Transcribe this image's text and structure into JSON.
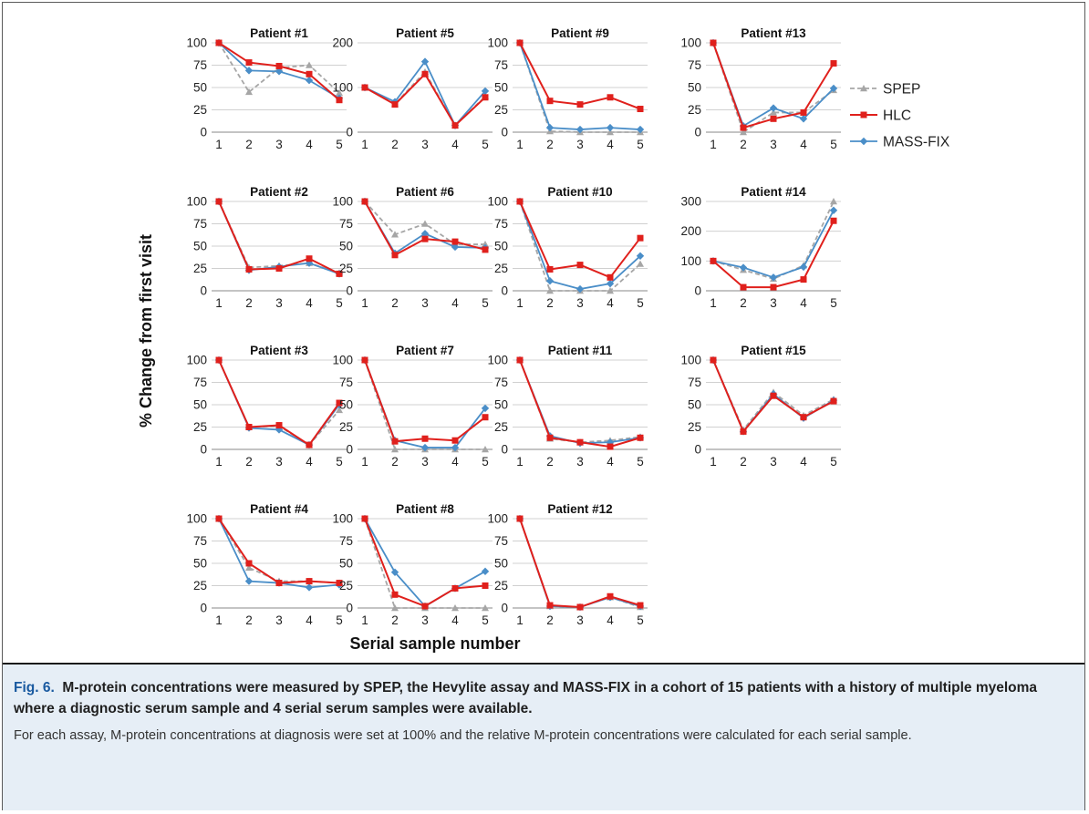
{
  "figure": {
    "y_axis_label": "% Change from first visit",
    "x_axis_label": "Serial sample number"
  },
  "legend": [
    {
      "name": "SPEP",
      "color": "#a6a6a6",
      "marker": "triangle",
      "dashed": true
    },
    {
      "name": "HLC",
      "color": "#e0201c",
      "marker": "square",
      "dashed": false
    },
    {
      "name": "MASS-FIX",
      "color": "#4a8ec8",
      "marker": "diamond",
      "dashed": false
    }
  ],
  "caption": {
    "label": "Fig. 6.",
    "title": "M-protein concentrations were measured by SPEP, the Hevylite assay and MASS-FIX in a cohort of 15 patients with a history of multiple myeloma where a diagnostic serum sample and 4 serial serum samples were available.",
    "body": "For each assay, M-protein concentrations at diagnosis were set at 100% and the relative M-protein concentrations were calculated for each serial sample."
  },
  "chart_data": [
    {
      "type": "line",
      "title": "Patient #1",
      "x": [
        1,
        2,
        3,
        4,
        5
      ],
      "ylim": [
        0,
        100
      ],
      "yticks": [
        0,
        25,
        50,
        75,
        100
      ],
      "series": [
        {
          "name": "SPEP",
          "values": [
            100,
            45,
            72,
            75,
            44
          ]
        },
        {
          "name": "HLC",
          "values": [
            100,
            78,
            74,
            65,
            36
          ]
        },
        {
          "name": "MASS-FIX",
          "values": [
            100,
            69,
            68,
            58,
            38
          ]
        }
      ]
    },
    {
      "type": "line",
      "title": "Patient #2",
      "x": [
        1,
        2,
        3,
        4,
        5
      ],
      "ylim": [
        0,
        100
      ],
      "yticks": [
        0,
        25,
        50,
        75,
        100
      ],
      "series": [
        {
          "name": "SPEP",
          "values": [
            100,
            26,
            28,
            31,
            20
          ]
        },
        {
          "name": "HLC",
          "values": [
            100,
            24,
            25,
            36,
            19
          ]
        },
        {
          "name": "MASS-FIX",
          "values": [
            100,
            23,
            27,
            31,
            19
          ]
        }
      ]
    },
    {
      "type": "line",
      "title": "Patient #3",
      "x": [
        1,
        2,
        3,
        4,
        5
      ],
      "ylim": [
        0,
        100
      ],
      "yticks": [
        0,
        25,
        50,
        75,
        100
      ],
      "series": [
        {
          "name": "SPEP",
          "values": [
            100,
            25,
            26,
            5,
            44
          ]
        },
        {
          "name": "HLC",
          "values": [
            100,
            25,
            27,
            5,
            52
          ]
        },
        {
          "name": "MASS-FIX",
          "values": [
            100,
            24,
            22,
            5,
            50
          ]
        }
      ]
    },
    {
      "type": "line",
      "title": "Patient #4",
      "x": [
        1,
        2,
        3,
        4,
        5
      ],
      "ylim": [
        0,
        100
      ],
      "yticks": [
        0,
        25,
        50,
        75,
        100
      ],
      "series": [
        {
          "name": "SPEP",
          "values": [
            100,
            45,
            30,
            30,
            28
          ]
        },
        {
          "name": "HLC",
          "values": [
            100,
            50,
            28,
            30,
            28
          ]
        },
        {
          "name": "MASS-FIX",
          "values": [
            100,
            30,
            28,
            23,
            26
          ]
        }
      ]
    },
    {
      "type": "line",
      "title": "Patient #5",
      "x": [
        1,
        2,
        3,
        4,
        5
      ],
      "ylim": [
        0,
        200
      ],
      "yticks": [
        0,
        100,
        200
      ],
      "series": [
        {
          "name": "SPEP",
          "values": [
            100,
            63,
            135,
            15,
            80
          ]
        },
        {
          "name": "HLC",
          "values": [
            100,
            62,
            130,
            15,
            78
          ]
        },
        {
          "name": "MASS-FIX",
          "values": [
            100,
            68,
            158,
            15,
            92
          ]
        }
      ]
    },
    {
      "type": "line",
      "title": "Patient #6",
      "x": [
        1,
        2,
        3,
        4,
        5
      ],
      "ylim": [
        0,
        100
      ],
      "yticks": [
        0,
        25,
        50,
        75,
        100
      ],
      "series": [
        {
          "name": "SPEP",
          "values": [
            100,
            63,
            75,
            52,
            52
          ]
        },
        {
          "name": "HLC",
          "values": [
            100,
            40,
            58,
            55,
            46
          ]
        },
        {
          "name": "MASS-FIX",
          "values": [
            100,
            42,
            64,
            49,
            48
          ]
        }
      ]
    },
    {
      "type": "line",
      "title": "Patient #7",
      "x": [
        1,
        2,
        3,
        4,
        5
      ],
      "ylim": [
        0,
        100
      ],
      "yticks": [
        0,
        25,
        50,
        75,
        100
      ],
      "series": [
        {
          "name": "SPEP",
          "values": [
            100,
            0,
            0,
            0,
            0
          ]
        },
        {
          "name": "HLC",
          "values": [
            100,
            9,
            12,
            10,
            36
          ]
        },
        {
          "name": "MASS-FIX",
          "values": [
            100,
            10,
            2,
            2,
            46
          ]
        }
      ]
    },
    {
      "type": "line",
      "title": "Patient #8",
      "x": [
        1,
        2,
        3,
        4,
        5
      ],
      "ylim": [
        0,
        100
      ],
      "yticks": [
        0,
        25,
        50,
        75,
        100
      ],
      "series": [
        {
          "name": "SPEP",
          "values": [
            100,
            0,
            0,
            0,
            0
          ]
        },
        {
          "name": "HLC",
          "values": [
            100,
            15,
            2,
            22,
            25
          ]
        },
        {
          "name": "MASS-FIX",
          "values": [
            100,
            40,
            2,
            22,
            41
          ]
        }
      ]
    },
    {
      "type": "line",
      "title": "Patient #9",
      "x": [
        1,
        2,
        3,
        4,
        5
      ],
      "ylim": [
        0,
        100
      ],
      "yticks": [
        0,
        25,
        50,
        75,
        100
      ],
      "series": [
        {
          "name": "SPEP",
          "values": [
            100,
            1,
            0,
            0,
            0
          ]
        },
        {
          "name": "HLC",
          "values": [
            100,
            35,
            31,
            39,
            26
          ]
        },
        {
          "name": "MASS-FIX",
          "values": [
            100,
            5,
            3,
            5,
            3
          ]
        }
      ]
    },
    {
      "type": "line",
      "title": "Patient #10",
      "x": [
        1,
        2,
        3,
        4,
        5
      ],
      "ylim": [
        0,
        100
      ],
      "yticks": [
        0,
        25,
        50,
        75,
        100
      ],
      "series": [
        {
          "name": "SPEP",
          "values": [
            100,
            0,
            0,
            0,
            30
          ]
        },
        {
          "name": "HLC",
          "values": [
            100,
            24,
            29,
            15,
            59
          ]
        },
        {
          "name": "MASS-FIX",
          "values": [
            100,
            11,
            2,
            8,
            39
          ]
        }
      ]
    },
    {
      "type": "line",
      "title": "Patient #11",
      "x": [
        1,
        2,
        3,
        4,
        5
      ],
      "ylim": [
        0,
        100
      ],
      "yticks": [
        0,
        25,
        50,
        75,
        100
      ],
      "series": [
        {
          "name": "SPEP",
          "values": [
            100,
            12,
            8,
            10,
            14
          ]
        },
        {
          "name": "HLC",
          "values": [
            100,
            13,
            8,
            3,
            13
          ]
        },
        {
          "name": "MASS-FIX",
          "values": [
            100,
            15,
            7,
            8,
            13
          ]
        }
      ]
    },
    {
      "type": "line",
      "title": "Patient #12",
      "x": [
        1,
        2,
        3,
        4,
        5
      ],
      "ylim": [
        0,
        100
      ],
      "yticks": [
        0,
        25,
        50,
        75,
        100
      ],
      "series": [
        {
          "name": "SPEP",
          "values": [
            100,
            2,
            1,
            12,
            1
          ]
        },
        {
          "name": "HLC",
          "values": [
            100,
            3,
            1,
            13,
            3
          ]
        },
        {
          "name": "MASS-FIX",
          "values": [
            100,
            2,
            1,
            12,
            2
          ]
        }
      ]
    },
    {
      "type": "line",
      "title": "Patient #13",
      "x": [
        1,
        2,
        3,
        4,
        5
      ],
      "ylim": [
        0,
        100
      ],
      "yticks": [
        0,
        25,
        50,
        75,
        100
      ],
      "series": [
        {
          "name": "SPEP",
          "values": [
            100,
            0,
            22,
            22,
            47
          ]
        },
        {
          "name": "HLC",
          "values": [
            100,
            5,
            15,
            22,
            77
          ]
        },
        {
          "name": "MASS-FIX",
          "values": [
            100,
            7,
            27,
            15,
            49
          ]
        }
      ]
    },
    {
      "type": "line",
      "title": "Patient #14",
      "x": [
        1,
        2,
        3,
        4,
        5
      ],
      "ylim": [
        0,
        300
      ],
      "yticks": [
        0,
        100,
        200,
        300
      ],
      "series": [
        {
          "name": "SPEP",
          "values": [
            100,
            70,
            40,
            85,
            300
          ]
        },
        {
          "name": "HLC",
          "values": [
            100,
            12,
            12,
            38,
            235
          ]
        },
        {
          "name": "MASS-FIX",
          "values": [
            100,
            78,
            45,
            80,
            270
          ]
        }
      ]
    },
    {
      "type": "line",
      "title": "Patient #15",
      "x": [
        1,
        2,
        3,
        4,
        5
      ],
      "ylim": [
        0,
        100
      ],
      "yticks": [
        0,
        25,
        50,
        75,
        100
      ],
      "series": [
        {
          "name": "SPEP",
          "values": [
            100,
            22,
            64,
            38,
            56
          ]
        },
        {
          "name": "HLC",
          "values": [
            100,
            20,
            60,
            36,
            54
          ]
        },
        {
          "name": "MASS-FIX",
          "values": [
            100,
            20,
            62,
            35,
            55
          ]
        }
      ]
    }
  ]
}
